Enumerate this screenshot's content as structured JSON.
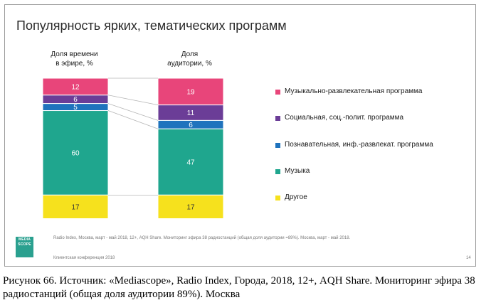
{
  "slide": {
    "title": "Популярность ярких, тематических программ",
    "source_note": "Radio Index, Москва, март - май 2018, 12+, AQH Share. Мониторинг эфира 38 радиостанций (общая доля аудитории =89%). Москва, март - май 2018.",
    "conference": "Клиентская конференция 2018",
    "page_number": "14",
    "logo_lines": [
      "MEDIA",
      "SCOPE"
    ]
  },
  "caption": "Рисунок  66. Источник: «Mediascope», Radio Index, Города, 2018, 12+, AQH Share. Мониторинг эфира 38 радиостанций (общая доля аудитории 89%). Москва",
  "chart_data": {
    "type": "bar",
    "stacked": true,
    "normalized": true,
    "title": "Популярность ярких, тематических программ",
    "categories": [
      "Доля времени\nв эфире, %",
      "Доля\nаудитории, %"
    ],
    "series": [
      {
        "name": "Музыкально-развлекательная программа",
        "color": "#e8457a",
        "values": [
          12,
          19
        ]
      },
      {
        "name": "Социальная, соц.-полит. программа",
        "color": "#6b3d97",
        "values": [
          6,
          11
        ]
      },
      {
        "name": "Познавательная, инф.-развлекат. программа",
        "color": "#1f73bd",
        "values": [
          5,
          6
        ]
      },
      {
        "name": "Музыка",
        "color": "#1fa68e",
        "values": [
          60,
          47
        ]
      },
      {
        "name": "Другое",
        "color": "#f6e11d",
        "values": [
          17,
          17
        ]
      }
    ],
    "ylim": [
      0,
      100
    ],
    "grid": false,
    "legend_position": "right"
  }
}
